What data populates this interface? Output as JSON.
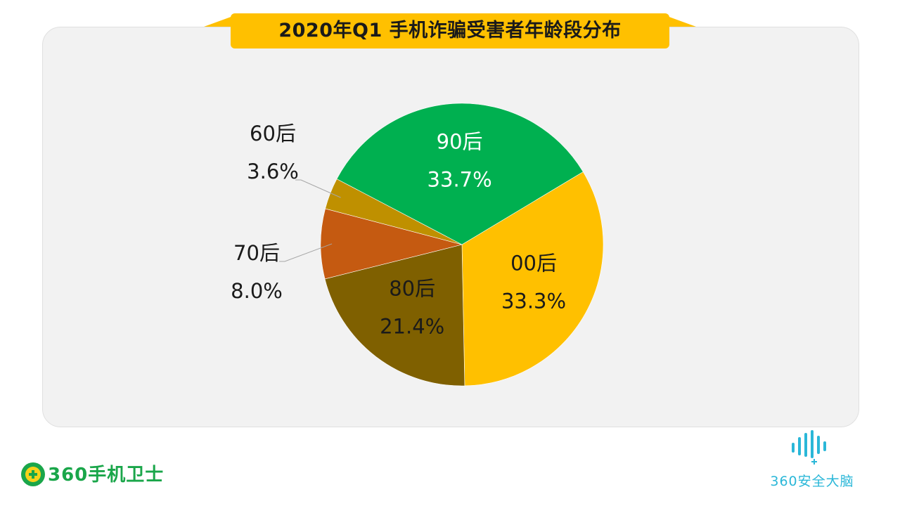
{
  "title": "2020年Q1 手机诈骗受害者年龄段分布",
  "chart_data": {
    "type": "pie",
    "title": "2020年Q1 手机诈骗受害者年龄段分布",
    "slices": [
      {
        "label": "00后",
        "value": 33.3,
        "display": "33.3%",
        "color": "#ffc000",
        "text_color": "#1a1a1a"
      },
      {
        "label": "80后",
        "value": 21.4,
        "display": "21.4%",
        "color": "#7f6000",
        "text_color": "#1a1a1a"
      },
      {
        "label": "70后",
        "value": 8.0,
        "display": "8.0%",
        "color": "#c55a11",
        "text_color": "#1a1a1a"
      },
      {
        "label": "60后",
        "value": 3.6,
        "display": "3.6%",
        "color": "#bf9000",
        "text_color": "#1a1a1a"
      },
      {
        "label": "90后",
        "value": 33.7,
        "display": "33.7%",
        "color": "#00b050",
        "text_color": "#ffffff"
      }
    ],
    "legend": "none",
    "start_angle_deg": 59
  },
  "colors": {
    "panel_bg": "#f2f2f2",
    "banner": "#ffc000",
    "brand_green": "#1aa64a",
    "brand_cyan": "#2ab7d8"
  },
  "logos": {
    "left": {
      "text": "360手机卫士",
      "icon": "shield-plus-icon"
    },
    "right": {
      "text": "360安全大脑",
      "icon": "soundwave-icon"
    }
  }
}
